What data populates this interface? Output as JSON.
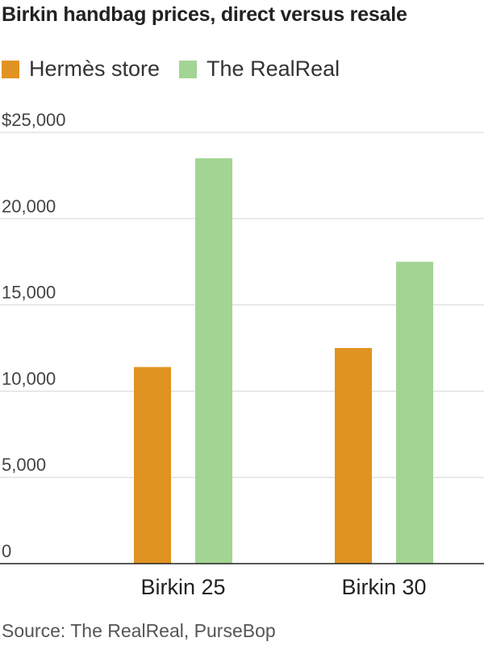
{
  "chart_data": {
    "type": "bar",
    "title": "Birkin handbag prices, direct versus resale",
    "categories": [
      "Birkin 25",
      "Birkin 30"
    ],
    "series": [
      {
        "name": "Hermès store",
        "values": [
          11400,
          12500
        ],
        "color": "#e09320"
      },
      {
        "name": "The RealReal",
        "values": [
          23500,
          17500
        ],
        "color": "#a3d494"
      }
    ],
    "y_ticks": [
      "0",
      "5,000",
      "10,000",
      "15,000",
      "20,000",
      "$25,000"
    ],
    "ylim": [
      0,
      25000
    ],
    "grid": true,
    "legend_position": "top-left",
    "source": "Source: The RealReal, PurseBop"
  }
}
